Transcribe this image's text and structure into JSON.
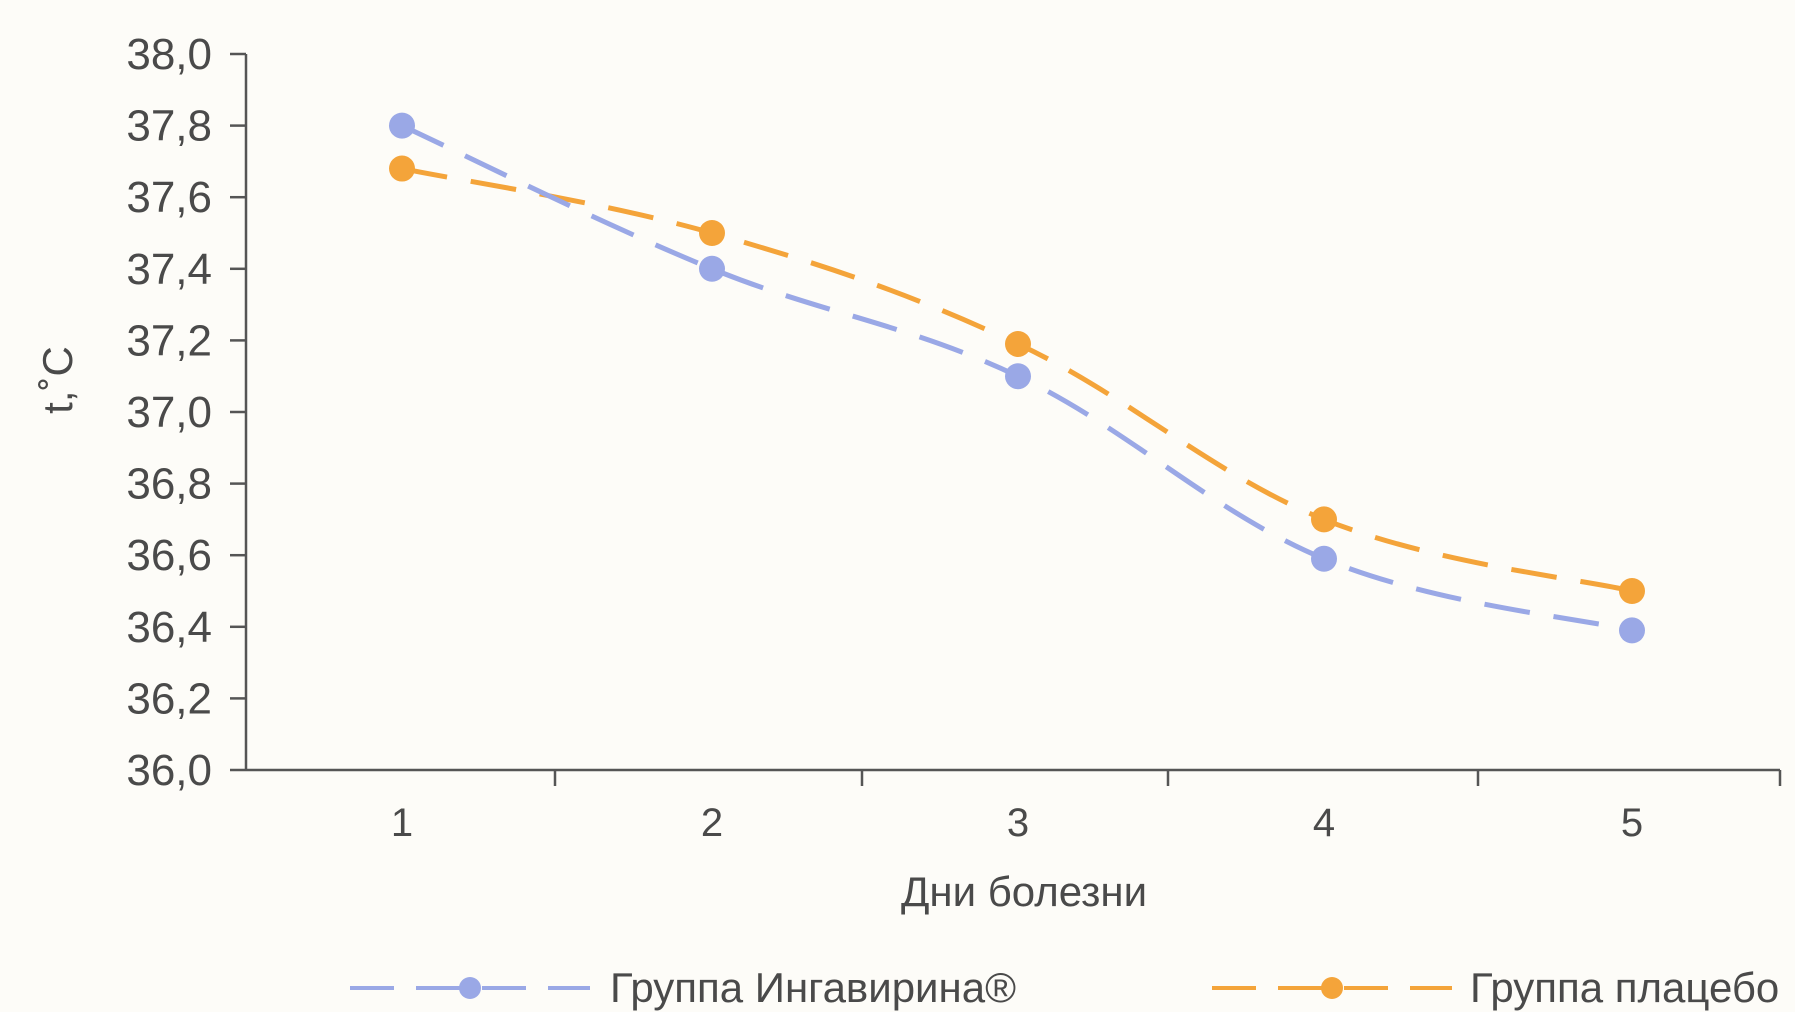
{
  "chart_data": {
    "type": "line",
    "title": "",
    "xlabel": "Дни болезни",
    "ylabel": "t,˚C",
    "categories": [
      "1",
      "2",
      "3",
      "4",
      "5"
    ],
    "y_ticks": [
      "38,0",
      "37,8",
      "37,6",
      "37,4",
      "37,2",
      "37,0",
      "36,8",
      "36,6",
      "36,4",
      "36,2",
      "36,0"
    ],
    "ylim": [
      36.0,
      38.0
    ],
    "y_tick_values": [
      38.0,
      37.8,
      37.6,
      37.4,
      37.2,
      37.0,
      36.8,
      36.6,
      36.4,
      36.2,
      36.0
    ],
    "grid": false,
    "legend_position": "bottom",
    "series": [
      {
        "name": "Группа Ингавирина®",
        "values": [
          37.8,
          37.4,
          37.1,
          36.59,
          36.39
        ],
        "color": "#9aa8e6",
        "line_style": "dashed",
        "marker": "circle"
      },
      {
        "name": "Группа плацебо",
        "values": [
          37.68,
          37.5,
          37.19,
          36.7,
          36.5
        ],
        "color": "#f4a43a",
        "line_style": "dashed",
        "marker": "circle"
      }
    ]
  }
}
